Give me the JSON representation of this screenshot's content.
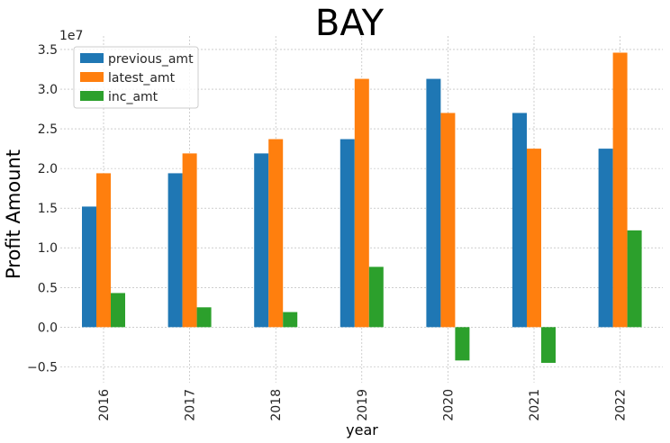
{
  "chart_data": {
    "type": "bar",
    "title": "BAY",
    "xlabel": "year",
    "ylabel": "Profit Amount",
    "y_offset_label": "1e7",
    "categories": [
      "2016",
      "2017",
      "2018",
      "2019",
      "2020",
      "2021",
      "2022"
    ],
    "series": [
      {
        "name": "previous_amt",
        "color": "#1f77b4",
        "values": [
          15200000,
          19400000,
          21900000,
          23700000,
          31300000,
          27000000,
          22500000
        ]
      },
      {
        "name": "latest_amt",
        "color": "#ff7f0e",
        "values": [
          19400000,
          21900000,
          23700000,
          31300000,
          27000000,
          22500000,
          34600000
        ]
      },
      {
        "name": "inc_amt",
        "color": "#2ca02c",
        "values": [
          4300000,
          2500000,
          1900000,
          7600000,
          -4200000,
          -4500000,
          12200000
        ]
      }
    ],
    "ylim": [
      -7000000,
      36700000
    ],
    "yticks": [
      -5000000,
      0,
      5000000,
      10000000,
      15000000,
      20000000,
      25000000,
      30000000,
      35000000
    ],
    "ytick_labels": [
      "−0.5",
      "0.0",
      "0.5",
      "1.0",
      "1.5",
      "2.0",
      "2.5",
      "3.0",
      "3.5"
    ],
    "grid": true,
    "legend_position": "top-left"
  }
}
